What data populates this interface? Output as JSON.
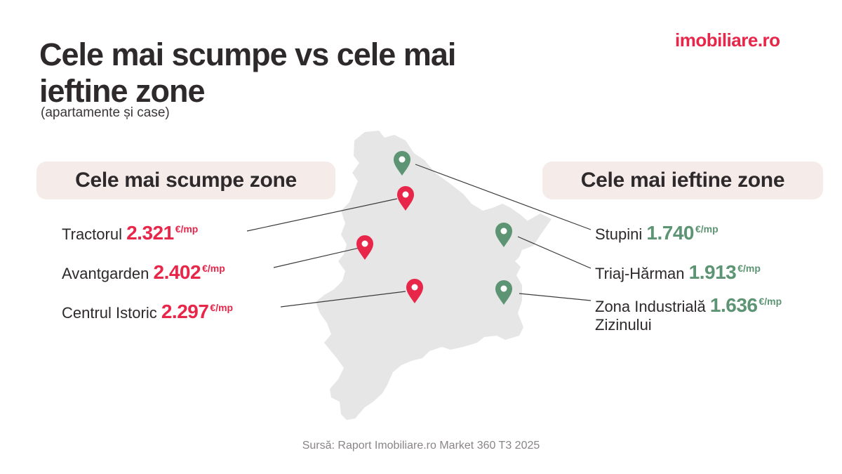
{
  "title": "Cele mai scumpe vs cele mai ieftine zone",
  "subtitle": "(apartamente și case)",
  "logo": "imobiliare.ro",
  "expensive": {
    "heading": "Cele mai scumpe zone",
    "color": "#e8264a",
    "zones": [
      {
        "name": "Tractorul",
        "price": "2.321",
        "unit": "€/mp"
      },
      {
        "name": "Avantgarden",
        "price": "2.402",
        "unit": "€/mp"
      },
      {
        "name": "Centrul Istoric",
        "price": "2.297",
        "unit": "€/mp"
      }
    ]
  },
  "cheap": {
    "heading": "Cele mai ieftine zone",
    "color": "#5d9473",
    "zones": [
      {
        "name": "Stupini",
        "price": "1.740",
        "unit": "€/mp"
      },
      {
        "name": "Triaj-Hărman",
        "price": "1.913",
        "unit": "€/mp"
      },
      {
        "name": "Zona Industrială",
        "name_line2": "Zizinului",
        "price": "1.636",
        "unit": "€/mp"
      }
    ]
  },
  "source": "Sursă: Raport Imobiliare.ro Market 360 T3 2025",
  "icons": {
    "expensive_pin": "map-pin-red-icon",
    "cheap_pin": "map-pin-green-icon"
  }
}
